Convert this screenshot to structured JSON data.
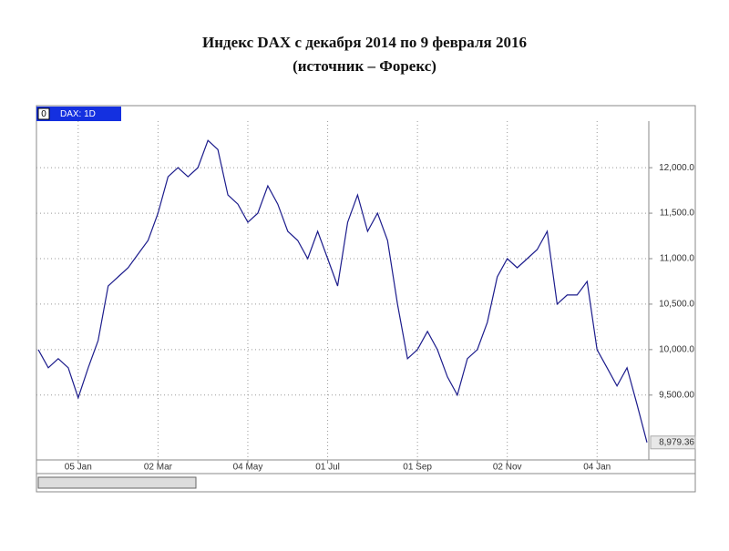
{
  "chart_data": {
    "type": "line",
    "title": "Индекс DAX с декабря 2014 по 9 февраля 2016",
    "subtitle": "(источник – Форекс)",
    "panel_index": "0",
    "x": [
      "08 Dec",
      "15 Dec",
      "22 Dec",
      "29 Dec",
      "05 Jan",
      "12 Jan",
      "19 Jan",
      "26 Jan",
      "02 Feb",
      "09 Feb",
      "16 Feb",
      "23 Feb",
      "02 Mar",
      "09 Mar",
      "16 Mar",
      "23 Mar",
      "30 Mar",
      "06 Apr",
      "13 Apr",
      "20 Apr",
      "27 Apr",
      "04 May",
      "11 May",
      "18 May",
      "25 May",
      "01 Jun",
      "08 Jun",
      "15 Jun",
      "22 Jun",
      "01 Jul",
      "06 Jul",
      "13 Jul",
      "20 Jul",
      "27 Jul",
      "03 Aug",
      "10 Aug",
      "17 Aug",
      "24 Aug",
      "01 Sep",
      "07 Sep",
      "14 Sep",
      "21 Sep",
      "28 Sep",
      "05 Oct",
      "12 Oct",
      "19 Oct",
      "26 Oct",
      "02 Nov",
      "09 Nov",
      "16 Nov",
      "23 Nov",
      "30 Nov",
      "07 Dec",
      "14 Dec",
      "21 Dec",
      "28 Dec",
      "04 Jan",
      "11 Jan",
      "18 Jan",
      "25 Jan",
      "01 Feb",
      "09 Feb"
    ],
    "series": [
      {
        "name": "DAX: 1D",
        "color": "#1c1c8c",
        "values": [
          10000,
          9800,
          9900,
          9800,
          9470,
          9800,
          10100,
          10700,
          10800,
          10900,
          11050,
          11200,
          11500,
          11900,
          12000,
          11900,
          12000,
          12300,
          12200,
          11700,
          11600,
          11400,
          11500,
          11800,
          11600,
          11300,
          11200,
          11000,
          11300,
          11000,
          10700,
          11400,
          11700,
          11300,
          11500,
          11200,
          10500,
          9900,
          10000,
          10200,
          10000,
          9700,
          9500,
          9900,
          10000,
          10300,
          10800,
          11000,
          10900,
          11000,
          11100,
          11300,
          10500,
          10600,
          10600,
          10750,
          10000,
          9800,
          9600,
          9800,
          9400,
          8979.36
        ]
      }
    ],
    "last_value_label": "8,979.36",
    "xticks": [
      "05 Jan",
      "02 Mar",
      "04 May",
      "01 Jul",
      "01 Sep",
      "02 Nov",
      "04 Jan"
    ],
    "xtick_index": [
      4,
      12,
      21,
      29,
      38,
      47,
      56
    ],
    "ylim": [
      8787,
      12512
    ],
    "yticks": [
      {
        "value": 9500,
        "label": "9,500.00"
      },
      {
        "value": 10000,
        "label": "10,000.0"
      },
      {
        "value": 10500,
        "label": "10,500.0"
      },
      {
        "value": 11000,
        "label": "11,000.0"
      },
      {
        "value": 11500,
        "label": "11,500.0"
      },
      {
        "value": 12000,
        "label": "12,000.0"
      }
    ],
    "grid": true
  }
}
